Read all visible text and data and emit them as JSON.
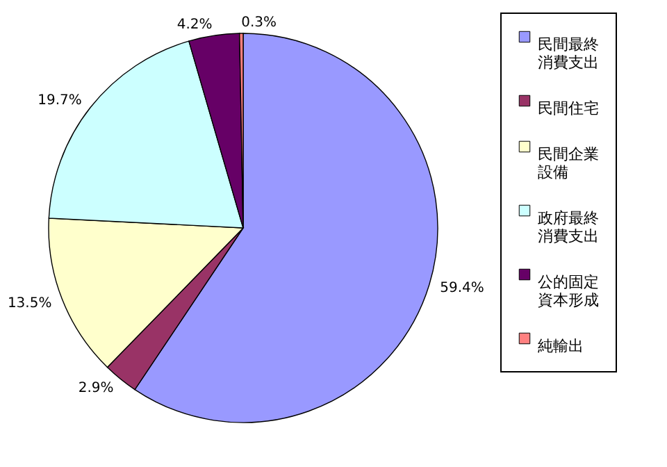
{
  "chart_data": {
    "type": "pie",
    "categories": [
      "民間最終消費支出",
      "民間住宅",
      "民間企業設備",
      "政府最終消費支出",
      "公的固定資本形成",
      "純輸出"
    ],
    "values": [
      59.4,
      2.9,
      13.5,
      19.7,
      4.2,
      0.3
    ],
    "colors": [
      "#9999ff",
      "#993366",
      "#ffffcc",
      "#ccffff",
      "#660066",
      "#ff8080"
    ],
    "value_labels": [
      "59.4%",
      "2.9%",
      "13.5%",
      "19.7%",
      "4.2%",
      "0.3%"
    ],
    "legend": "right"
  }
}
